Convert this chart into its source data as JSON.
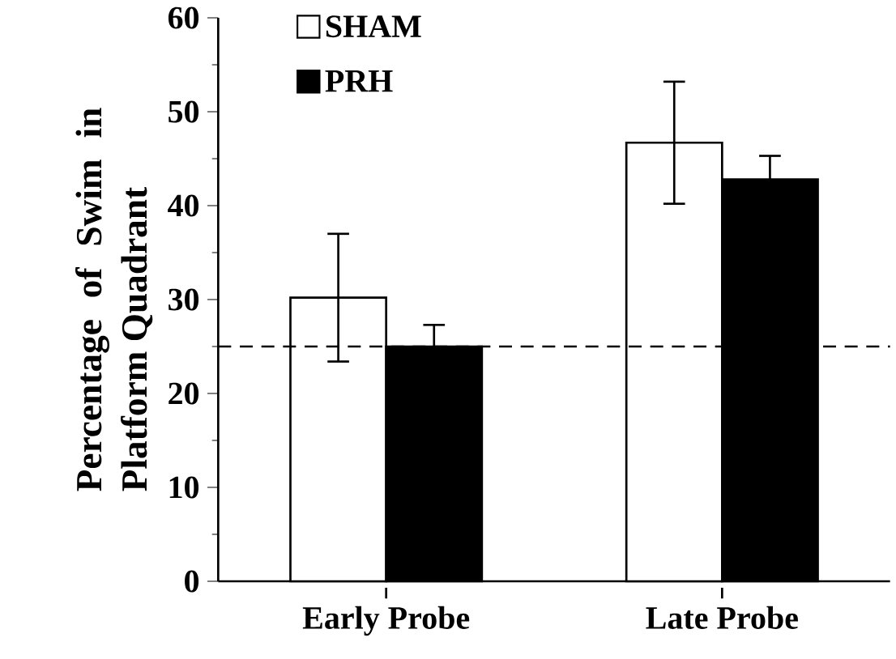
{
  "chart_data": {
    "type": "bar",
    "ylabel": "Percentage of Swim in Platform Quadrant",
    "categories": [
      "Early Probe",
      "Late Probe"
    ],
    "series": [
      {
        "name": "SHAM",
        "color": "#ffffff",
        "values": [
          30.2,
          46.7
        ],
        "errors": [
          6.8,
          6.5
        ]
      },
      {
        "name": "PRH",
        "color": "#000000",
        "values": [
          25.0,
          42.8
        ],
        "errors": [
          2.3,
          2.5
        ]
      }
    ],
    "ylim": [
      0,
      60
    ],
    "yticks": [
      0,
      10,
      20,
      30,
      40,
      50,
      60
    ],
    "ref_lines": [
      {
        "axis": "y",
        "value": 25,
        "line_style": "dashed"
      }
    ],
    "legend": "top left",
    "grid": false
  }
}
